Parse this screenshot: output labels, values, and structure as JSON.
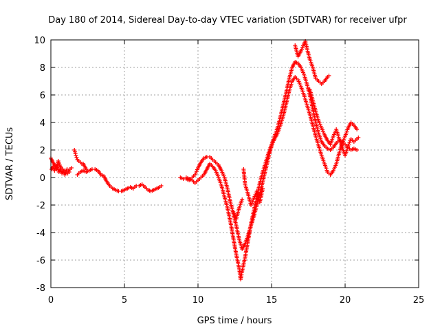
{
  "chart_data": {
    "type": "scatter",
    "title": "Day 180 of 2014, Sidereal Day-to-day VTEC variation (SDTVAR) for receiver ufpr",
    "xlabel": "GPS time / hours",
    "ylabel": "SDTVAR / TECUs",
    "xlim": [
      0,
      25
    ],
    "ylim": [
      -8,
      10
    ],
    "x_ticks": [
      0,
      5,
      10,
      15,
      20,
      25
    ],
    "y_ticks": [
      -8,
      -6,
      -4,
      -2,
      0,
      2,
      4,
      6,
      8,
      10
    ],
    "grid": true,
    "marker": "+",
    "color": "#ff0000",
    "series": [
      {
        "points": [
          [
            0.0,
            1.4
          ],
          [
            0.1,
            1.2
          ],
          [
            0.2,
            1.0
          ],
          [
            0.3,
            0.8
          ],
          [
            0.4,
            0.6
          ],
          [
            0.5,
            1.2
          ],
          [
            0.6,
            0.9
          ],
          [
            0.7,
            0.7
          ],
          [
            0.8,
            0.6
          ],
          [
            0.9,
            0.5
          ],
          [
            1.0,
            0.4
          ],
          [
            1.1,
            0.6
          ],
          [
            1.2,
            0.5
          ],
          [
            1.3,
            0.6
          ],
          [
            1.4,
            0.7
          ],
          [
            0.05,
            0.6
          ],
          [
            0.15,
            0.8
          ],
          [
            0.25,
            0.5
          ],
          [
            0.35,
            0.9
          ],
          [
            0.45,
            0.7
          ],
          [
            0.55,
            0.4
          ],
          [
            0.65,
            0.6
          ],
          [
            0.75,
            0.3
          ],
          [
            0.85,
            0.5
          ],
          [
            0.95,
            0.2
          ],
          [
            1.05,
            0.4
          ],
          [
            1.15,
            0.3
          ],
          [
            1.25,
            0.4
          ],
          [
            1.6,
            2.0
          ],
          [
            1.7,
            1.6
          ],
          [
            1.8,
            1.3
          ],
          [
            1.9,
            1.2
          ],
          [
            2.0,
            1.1
          ],
          [
            2.1,
            1.0
          ],
          [
            2.2,
            1.0
          ],
          [
            2.3,
            0.8
          ],
          [
            2.4,
            0.6
          ],
          [
            1.8,
            0.2
          ],
          [
            1.9,
            0.3
          ],
          [
            2.0,
            0.4
          ],
          [
            2.2,
            0.5
          ],
          [
            2.4,
            0.4
          ],
          [
            2.6,
            0.5
          ],
          [
            2.8,
            0.6
          ],
          [
            3.0,
            0.6
          ],
          [
            3.2,
            0.5
          ],
          [
            3.4,
            0.2
          ],
          [
            3.6,
            0.1
          ],
          [
            3.8,
            -0.3
          ],
          [
            4.0,
            -0.6
          ],
          [
            4.2,
            -0.8
          ],
          [
            4.4,
            -0.9
          ],
          [
            4.6,
            -1.0
          ],
          [
            4.8,
            -1.0
          ],
          [
            5.0,
            -0.9
          ],
          [
            5.2,
            -0.8
          ],
          [
            5.4,
            -0.7
          ],
          [
            5.6,
            -0.8
          ],
          [
            5.8,
            -0.6
          ],
          [
            6.0,
            -0.6
          ],
          [
            6.2,
            -0.5
          ],
          [
            6.4,
            -0.7
          ],
          [
            6.6,
            -0.9
          ],
          [
            6.8,
            -1.0
          ],
          [
            7.0,
            -0.9
          ],
          [
            7.2,
            -0.8
          ],
          [
            7.4,
            -0.7
          ],
          [
            7.5,
            -0.6
          ],
          [
            8.8,
            0.0
          ],
          [
            9.0,
            -0.1
          ],
          [
            9.2,
            -0.1
          ],
          [
            9.4,
            -0.2
          ],
          [
            9.6,
            0.0
          ],
          [
            9.8,
            0.2
          ],
          [
            10.0,
            0.7
          ],
          [
            10.2,
            1.1
          ],
          [
            10.4,
            1.4
          ],
          [
            10.6,
            1.5
          ],
          [
            10.8,
            1.5
          ],
          [
            11.0,
            1.3
          ],
          [
            11.2,
            1.1
          ],
          [
            11.4,
            0.9
          ],
          [
            11.6,
            0.5
          ],
          [
            11.8,
            0.0
          ],
          [
            12.0,
            -0.8
          ],
          [
            12.2,
            -1.8
          ],
          [
            12.4,
            -2.6
          ],
          [
            12.6,
            -3.5
          ],
          [
            12.8,
            -4.5
          ],
          [
            13.0,
            -5.2
          ],
          [
            13.2,
            -4.8
          ],
          [
            13.4,
            -4.2
          ],
          [
            13.6,
            -3.5
          ],
          [
            13.8,
            -2.8
          ],
          [
            14.0,
            -2.0
          ],
          [
            14.2,
            -1.2
          ],
          [
            14.4,
            -0.3
          ],
          [
            14.6,
            0.6
          ],
          [
            14.8,
            1.5
          ],
          [
            15.0,
            2.3
          ],
          [
            15.2,
            2.8
          ],
          [
            15.4,
            3.2
          ],
          [
            15.6,
            3.8
          ],
          [
            15.8,
            4.5
          ],
          [
            16.0,
            5.4
          ],
          [
            16.2,
            6.3
          ],
          [
            16.4,
            7.0
          ],
          [
            16.6,
            7.3
          ],
          [
            16.8,
            7.1
          ],
          [
            17.0,
            6.6
          ],
          [
            17.2,
            6.0
          ],
          [
            17.4,
            5.3
          ],
          [
            17.6,
            4.6
          ],
          [
            17.8,
            3.8
          ],
          [
            18.0,
            3.0
          ],
          [
            18.2,
            2.3
          ],
          [
            18.4,
            1.6
          ],
          [
            18.6,
            1.0
          ],
          [
            18.8,
            0.4
          ],
          [
            19.0,
            0.2
          ],
          [
            19.2,
            0.5
          ],
          [
            19.4,
            1.0
          ],
          [
            19.6,
            1.8
          ],
          [
            19.8,
            2.5
          ],
          [
            20.0,
            3.0
          ],
          [
            20.2,
            3.6
          ],
          [
            20.4,
            4.0
          ],
          [
            20.6,
            3.8
          ],
          [
            20.8,
            3.5
          ],
          [
            9.2,
            0.0
          ],
          [
            9.4,
            -0.1
          ],
          [
            9.6,
            -0.2
          ],
          [
            9.8,
            -0.4
          ],
          [
            10.0,
            -0.2
          ],
          [
            10.2,
            0.0
          ],
          [
            10.4,
            0.2
          ],
          [
            10.6,
            0.6
          ],
          [
            10.8,
            1.0
          ],
          [
            11.0,
            0.8
          ],
          [
            11.2,
            0.5
          ],
          [
            11.4,
            0.0
          ],
          [
            11.6,
            -0.6
          ],
          [
            11.8,
            -1.4
          ],
          [
            12.0,
            -2.2
          ],
          [
            12.2,
            -3.2
          ],
          [
            12.4,
            -4.4
          ],
          [
            12.6,
            -5.6
          ],
          [
            12.8,
            -6.6
          ],
          [
            12.9,
            -7.4
          ],
          [
            13.0,
            -6.8
          ],
          [
            13.2,
            -5.8
          ],
          [
            13.4,
            -4.6
          ],
          [
            13.6,
            -3.4
          ],
          [
            13.8,
            -2.4
          ],
          [
            14.0,
            -1.4
          ],
          [
            14.2,
            -0.4
          ],
          [
            14.4,
            0.4
          ],
          [
            14.6,
            1.1
          ],
          [
            14.8,
            1.8
          ],
          [
            15.0,
            2.4
          ],
          [
            15.2,
            3.0
          ],
          [
            15.4,
            3.6
          ],
          [
            15.6,
            4.4
          ],
          [
            15.8,
            5.3
          ],
          [
            16.0,
            6.2
          ],
          [
            16.2,
            7.2
          ],
          [
            16.4,
            8.0
          ],
          [
            16.6,
            8.4
          ],
          [
            16.8,
            8.3
          ],
          [
            17.0,
            8.0
          ],
          [
            17.2,
            7.5
          ],
          [
            17.4,
            6.8
          ],
          [
            17.6,
            6.0
          ],
          [
            17.8,
            5.0
          ],
          [
            18.0,
            4.0
          ],
          [
            18.2,
            3.2
          ],
          [
            18.4,
            2.6
          ],
          [
            18.6,
            2.3
          ],
          [
            18.8,
            2.1
          ],
          [
            19.0,
            2.0
          ],
          [
            19.2,
            2.2
          ],
          [
            19.4,
            2.5
          ],
          [
            19.6,
            2.7
          ],
          [
            19.8,
            2.6
          ],
          [
            20.0,
            2.4
          ],
          [
            20.2,
            2.2
          ],
          [
            20.4,
            2.0
          ],
          [
            20.6,
            2.1
          ],
          [
            20.8,
            2.0
          ],
          [
            12.4,
            -2.5
          ],
          [
            12.6,
            -3.0
          ],
          [
            12.8,
            -2.2
          ],
          [
            13.0,
            -1.6
          ],
          [
            13.1,
            0.6
          ],
          [
            13.2,
            -0.5
          ],
          [
            13.4,
            -1.2
          ],
          [
            13.6,
            -2.0
          ],
          [
            13.8,
            -1.5
          ],
          [
            14.0,
            -1.0
          ],
          [
            14.2,
            -1.8
          ],
          [
            14.4,
            -0.8
          ],
          [
            16.6,
            9.6
          ],
          [
            16.8,
            8.8
          ],
          [
            17.0,
            9.2
          ],
          [
            17.2,
            9.7
          ],
          [
            17.3,
            9.9
          ],
          [
            17.4,
            9.4
          ],
          [
            17.6,
            8.6
          ],
          [
            17.8,
            8.0
          ],
          [
            18.0,
            7.2
          ],
          [
            18.2,
            7.0
          ],
          [
            18.4,
            6.8
          ],
          [
            18.6,
            7.0
          ],
          [
            18.8,
            7.3
          ],
          [
            18.9,
            7.4
          ],
          [
            17.6,
            6.4
          ],
          [
            17.8,
            5.6
          ],
          [
            18.0,
            4.8
          ],
          [
            18.2,
            4.1
          ],
          [
            18.4,
            3.6
          ],
          [
            18.6,
            3.1
          ],
          [
            18.8,
            2.7
          ],
          [
            19.0,
            2.4
          ],
          [
            19.2,
            3.0
          ],
          [
            19.4,
            3.5
          ],
          [
            19.6,
            2.8
          ],
          [
            19.8,
            2.2
          ],
          [
            20.0,
            1.6
          ],
          [
            20.2,
            2.3
          ],
          [
            20.4,
            2.8
          ],
          [
            20.6,
            2.6
          ],
          [
            20.8,
            2.8
          ],
          [
            20.9,
            2.9
          ]
        ]
      }
    ]
  }
}
